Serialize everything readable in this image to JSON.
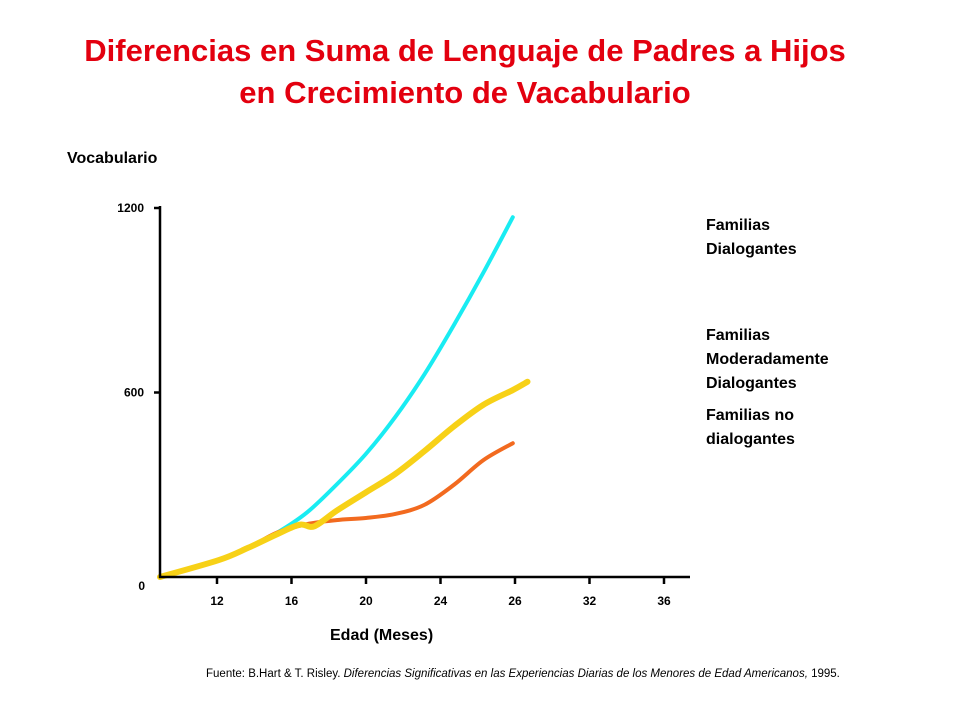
{
  "title_line1": "Diferencias en Suma de Lenguaje de Padres a Hijos",
  "title_line2": "en Crecimiento de Vacabulario",
  "source": {
    "prefix": "Fuente: B.Hart & T. Risley. ",
    "italic": "Diferencias Significativas en  las Experiencias Diarias de los Menores de Edad  Americanos,",
    "suffix": " 1995."
  },
  "chart_data": {
    "type": "line",
    "title": "Diferencias en Suma de Lenguaje de Padres a Hijos en Crecimiento de Vacabulario",
    "xlabel": "Edad  (Meses)",
    "ylabel": "Vocabulario",
    "ylim": [
      0,
      1200
    ],
    "y_ticks": [
      0,
      600,
      1200
    ],
    "x_tick_labels": [
      "12",
      "16",
      "20",
      "24",
      "26",
      "32",
      "36"
    ],
    "x_scale": "categorical, evenly spaced ticks",
    "grid": false,
    "legend_placement": "right, labels beside line ends",
    "series": [
      {
        "name_lines": [
          "Familias",
          "Dialogantes"
        ],
        "color": "#19ecf2",
        "points": [
          [
            10,
            0
          ],
          [
            14,
            55
          ],
          [
            16,
            95
          ],
          [
            18,
            145
          ],
          [
            20,
            210
          ],
          [
            22,
            300
          ],
          [
            24,
            400
          ],
          [
            26,
            520
          ],
          [
            28,
            660
          ],
          [
            30,
            820
          ],
          [
            32,
            990
          ],
          [
            34,
            1170
          ]
        ]
      },
      {
        "name_lines": [
          "Familias",
          "Moderadamente",
          "Dialogantes"
        ],
        "color": "#f7d117",
        "points": [
          [
            10,
            0
          ],
          [
            14,
            55
          ],
          [
            16,
            95
          ],
          [
            18,
            140
          ],
          [
            19.5,
            170
          ],
          [
            20.5,
            165
          ],
          [
            22,
            215
          ],
          [
            24,
            275
          ],
          [
            26,
            335
          ],
          [
            28,
            410
          ],
          [
            30,
            490
          ],
          [
            32,
            560
          ],
          [
            34,
            608
          ],
          [
            35,
            635
          ]
        ]
      },
      {
        "name_lines": [
          "Familias no",
          "dialogantes"
        ],
        "color": "#f26a1f",
        "points": [
          [
            10,
            0
          ],
          [
            14,
            55
          ],
          [
            16,
            95
          ],
          [
            18,
            145
          ],
          [
            20,
            172
          ],
          [
            22,
            185
          ],
          [
            24,
            192
          ],
          [
            26,
            205
          ],
          [
            28,
            235
          ],
          [
            30,
            300
          ],
          [
            32,
            380
          ],
          [
            34,
            435
          ]
        ]
      }
    ]
  }
}
